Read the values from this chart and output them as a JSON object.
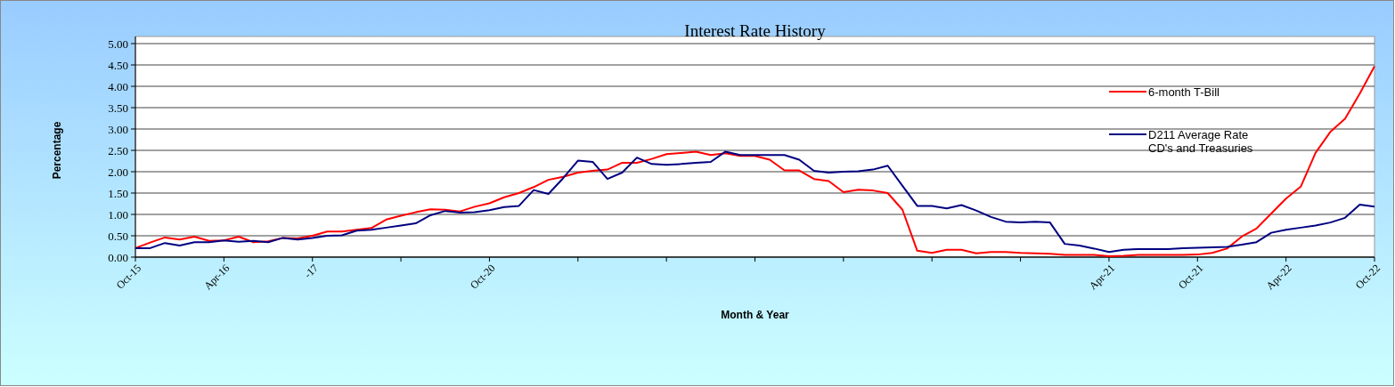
{
  "chart_data": {
    "type": "line",
    "title": "Interest Rate History",
    "xlabel": "Month & Year",
    "ylabel": "Percentage",
    "categories": [
      "Oct-15",
      null,
      null,
      null,
      null,
      null,
      "Apr-16",
      null,
      null,
      null,
      null,
      null,
      "-17",
      null,
      null,
      null,
      null,
      null,
      null,
      null,
      null,
      null,
      null,
      null,
      "Oct-20",
      null,
      null,
      null,
      null,
      null,
      null,
      null,
      null,
      null,
      null,
      null,
      null,
      null,
      null,
      null,
      null,
      null,
      null,
      null,
      null,
      null,
      null,
      null,
      null,
      null,
      null,
      null,
      null,
      null,
      null,
      null,
      null,
      null,
      null,
      null,
      null,
      null,
      null,
      null,
      null,
      null,
      "Apr-21",
      null,
      null,
      null,
      null,
      null,
      "Oct-21",
      null,
      null,
      null,
      null,
      null,
      "Apr-22",
      null,
      null,
      null,
      null,
      null,
      "Oct-22"
    ],
    "series": [
      {
        "name": "6-month T-Bill",
        "color": "#ff0000",
        "values": [
          0.21,
          0.34,
          0.46,
          0.41,
          0.48,
          0.38,
          0.39,
          0.48,
          0.35,
          0.37,
          0.45,
          0.44,
          0.5,
          0.6,
          0.6,
          0.64,
          0.68,
          0.88,
          0.97,
          1.05,
          1.12,
          1.11,
          1.07,
          1.18,
          1.26,
          1.4,
          1.5,
          1.64,
          1.81,
          1.88,
          1.98,
          2.02,
          2.05,
          2.21,
          2.21,
          2.3,
          2.41,
          2.44,
          2.47,
          2.39,
          2.43,
          2.37,
          2.37,
          2.28,
          2.03,
          2.03,
          1.83,
          1.78,
          1.52,
          1.58,
          1.56,
          1.5,
          1.11,
          0.15,
          0.1,
          0.17,
          0.17,
          0.09,
          0.12,
          0.12,
          0.1,
          0.09,
          0.08,
          0.05,
          0.05,
          0.05,
          0.02,
          0.03,
          0.05,
          0.05,
          0.05,
          0.05,
          0.06,
          0.1,
          0.2,
          0.48,
          0.67,
          1.02,
          1.37,
          1.65,
          2.44,
          2.93,
          3.24,
          3.83,
          4.47
        ]
      },
      {
        "name": "D211 Average Rate\nCD's and Treasuries",
        "color": "#000080",
        "values": [
          0.21,
          0.21,
          0.33,
          0.27,
          0.35,
          0.35,
          0.39,
          0.36,
          0.38,
          0.35,
          0.45,
          0.41,
          0.45,
          0.5,
          0.51,
          0.62,
          0.64,
          0.69,
          0.74,
          0.79,
          0.98,
          1.08,
          1.04,
          1.05,
          1.1,
          1.17,
          1.2,
          1.57,
          1.48,
          1.85,
          2.26,
          2.23,
          1.83,
          1.98,
          2.33,
          2.18,
          2.16,
          2.18,
          2.21,
          2.23,
          2.47,
          2.39,
          2.39,
          2.39,
          2.39,
          2.28,
          2.02,
          1.98,
          2.0,
          2.01,
          2.05,
          2.14,
          1.67,
          1.2,
          1.2,
          1.14,
          1.22,
          1.09,
          0.94,
          0.83,
          0.81,
          0.83,
          0.81,
          0.31,
          0.27,
          0.2,
          0.12,
          0.17,
          0.19,
          0.19,
          0.19,
          0.21,
          0.22,
          0.23,
          0.24,
          0.29,
          0.35,
          0.57,
          0.64,
          0.69,
          0.74,
          0.81,
          0.92,
          1.23,
          1.18
        ]
      }
    ],
    "ylim": [
      0,
      5
    ],
    "yticks": [
      {
        "value": 0,
        "label": "0.00"
      },
      {
        "value": 0.5,
        "label": "0.50"
      },
      {
        "value": 1,
        "label": "1.00"
      },
      {
        "value": 1.5,
        "label": "1.50"
      },
      {
        "value": 2,
        "label": "2.00"
      },
      {
        "value": 2.5,
        "label": "2.50"
      },
      {
        "value": 3,
        "label": "3.00"
      },
      {
        "value": 3.5,
        "label": "3.50"
      },
      {
        "value": 4,
        "label": "4.00"
      },
      {
        "value": 4.5,
        "label": "4.50"
      },
      {
        "value": 5,
        "label": "5.00"
      }
    ],
    "grid": "y",
    "legend": "top right",
    "marker": "none",
    "line_style": "solid"
  }
}
